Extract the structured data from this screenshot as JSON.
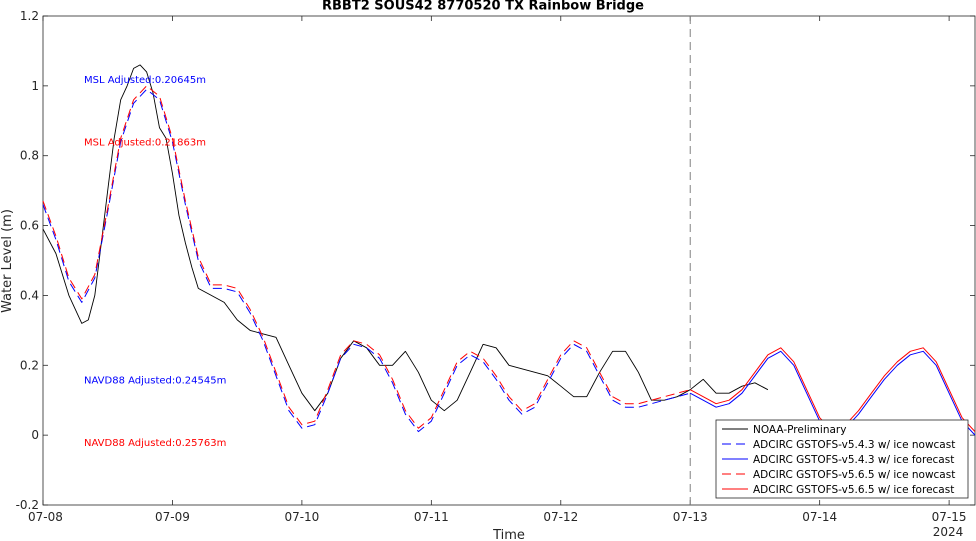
{
  "chart_data": {
    "type": "line",
    "title": "RBBT2 SOUS42 8770520 TX Rainbow Bridge",
    "xlabel": "Time",
    "ylabel": "Water Level (m)",
    "xlim": [
      0,
      7.2
    ],
    "ylim": [
      -0.2,
      1.2
    ],
    "x_ticks": [
      {
        "value": 0,
        "label": "07-08"
      },
      {
        "value": 1,
        "label": "07-09"
      },
      {
        "value": 2,
        "label": "07-10"
      },
      {
        "value": 3,
        "label": "07-11"
      },
      {
        "value": 4,
        "label": "07-12"
      },
      {
        "value": 5,
        "label": "07-13"
      },
      {
        "value": 6,
        "label": "07-14"
      },
      {
        "value": 7,
        "label": "07-15"
      }
    ],
    "x_unit_note": "2024",
    "y_ticks": [
      -0.2,
      0,
      0.2,
      0.4,
      0.6,
      0.8,
      1,
      1.2
    ],
    "y_tick_labels": [
      "-0.2",
      "0",
      "0.2",
      "0.4",
      "0.6",
      "0.8",
      "1",
      "1.2"
    ],
    "vline_x": 5,
    "annotations": [
      {
        "text": "MSL Adjusted:0.20645m",
        "color": "#0000ff",
        "y": 1.02
      },
      {
        "text": "MSL Adjusted:0.21863m",
        "color": "#ff0000",
        "y": 0.84
      },
      {
        "text": "NAVD88 Adjusted:0.24545m",
        "color": "#0000ff",
        "y": 0.16
      },
      {
        "text": "NAVD88 Adjusted:0.25763m",
        "color": "#ff0000",
        "y": -0.02
      }
    ],
    "legend_position": "bottom-right",
    "series": [
      {
        "name": "NOAA-Preliminary",
        "color": "#000000",
        "dash": "solid",
        "x": [
          0,
          0.1,
          0.2,
          0.3,
          0.35,
          0.4,
          0.45,
          0.5,
          0.55,
          0.6,
          0.65,
          0.7,
          0.75,
          0.8,
          0.85,
          0.9,
          0.95,
          1.0,
          1.05,
          1.1,
          1.15,
          1.2,
          1.3,
          1.4,
          1.5,
          1.6,
          1.7,
          1.8,
          1.9,
          2.0,
          2.1,
          2.2,
          2.3,
          2.4,
          2.5,
          2.6,
          2.7,
          2.8,
          2.9,
          3.0,
          3.1,
          3.2,
          3.3,
          3.4,
          3.5,
          3.6,
          3.7,
          3.8,
          3.9,
          4.0,
          4.1,
          4.2,
          4.3,
          4.4,
          4.5,
          4.6,
          4.7,
          4.8,
          4.9,
          5.0,
          5.1,
          5.2,
          5.3,
          5.4,
          5.5,
          5.6
        ],
        "y": [
          0.59,
          0.52,
          0.4,
          0.32,
          0.33,
          0.4,
          0.55,
          0.7,
          0.85,
          0.96,
          1.0,
          1.05,
          1.06,
          1.04,
          0.98,
          0.88,
          0.85,
          0.75,
          0.63,
          0.55,
          0.48,
          0.42,
          0.4,
          0.38,
          0.33,
          0.3,
          0.29,
          0.28,
          0.2,
          0.12,
          0.07,
          0.12,
          0.22,
          0.27,
          0.25,
          0.2,
          0.2,
          0.24,
          0.18,
          0.1,
          0.07,
          0.1,
          0.18,
          0.26,
          0.25,
          0.2,
          0.19,
          0.18,
          0.17,
          0.14,
          0.11,
          0.11,
          0.18,
          0.24,
          0.24,
          0.18,
          0.1,
          0.1,
          0.11,
          0.13,
          0.16,
          0.12,
          0.12,
          0.14,
          0.15,
          0.13
        ]
      },
      {
        "name": "ADCIRC GSTOFS-v5.4.3 w/ ice nowcast",
        "color": "#0000ff",
        "dash": "dashed",
        "x": [
          0,
          0.1,
          0.2,
          0.3,
          0.4,
          0.5,
          0.6,
          0.7,
          0.8,
          0.9,
          1.0,
          1.1,
          1.2,
          1.3,
          1.4,
          1.5,
          1.6,
          1.7,
          1.8,
          1.9,
          2.0,
          2.1,
          2.2,
          2.3,
          2.4,
          2.5,
          2.6,
          2.7,
          2.8,
          2.9,
          3.0,
          3.1,
          3.2,
          3.3,
          3.4,
          3.5,
          3.6,
          3.7,
          3.8,
          3.9,
          4.0,
          4.1,
          4.2,
          4.3,
          4.4,
          4.5,
          4.6,
          4.7,
          4.8,
          4.9,
          5.0
        ],
        "y": [
          0.66,
          0.56,
          0.44,
          0.38,
          0.45,
          0.64,
          0.84,
          0.95,
          0.99,
          0.96,
          0.84,
          0.66,
          0.5,
          0.42,
          0.42,
          0.41,
          0.35,
          0.27,
          0.17,
          0.07,
          0.02,
          0.03,
          0.12,
          0.22,
          0.26,
          0.25,
          0.22,
          0.15,
          0.06,
          0.01,
          0.04,
          0.12,
          0.2,
          0.23,
          0.21,
          0.16,
          0.1,
          0.06,
          0.08,
          0.15,
          0.22,
          0.26,
          0.24,
          0.17,
          0.1,
          0.08,
          0.08,
          0.09,
          0.1,
          0.11,
          0.12
        ]
      },
      {
        "name": "ADCIRC GSTOFS-v5.4.3 w/ ice forecast",
        "color": "#0000ff",
        "dash": "solid",
        "x": [
          5.0,
          5.1,
          5.2,
          5.3,
          5.4,
          5.5,
          5.6,
          5.7,
          5.8,
          5.9,
          6.0,
          6.1,
          6.2,
          6.3,
          6.4,
          6.5,
          6.6,
          6.7,
          6.8,
          6.9,
          7.0,
          7.1,
          7.2
        ],
        "y": [
          0.12,
          0.1,
          0.08,
          0.09,
          0.12,
          0.17,
          0.22,
          0.24,
          0.2,
          0.12,
          0.04,
          0.0,
          0.02,
          0.06,
          0.11,
          0.16,
          0.2,
          0.23,
          0.24,
          0.2,
          0.12,
          0.04,
          0.0
        ]
      },
      {
        "name": "ADCIRC GSTOFS-v5.6.5 w/ ice nowcast",
        "color": "#ff0000",
        "dash": "dashed",
        "x": [
          0,
          0.1,
          0.2,
          0.3,
          0.4,
          0.5,
          0.6,
          0.7,
          0.8,
          0.9,
          1.0,
          1.1,
          1.2,
          1.3,
          1.4,
          1.5,
          1.6,
          1.7,
          1.8,
          1.9,
          2.0,
          2.1,
          2.2,
          2.3,
          2.4,
          2.5,
          2.6,
          2.7,
          2.8,
          2.9,
          3.0,
          3.1,
          3.2,
          3.3,
          3.4,
          3.5,
          3.6,
          3.7,
          3.8,
          3.9,
          4.0,
          4.1,
          4.2,
          4.3,
          4.4,
          4.5,
          4.6,
          4.7,
          4.8,
          4.9,
          5.0
        ],
        "y": [
          0.67,
          0.57,
          0.45,
          0.39,
          0.46,
          0.65,
          0.85,
          0.96,
          1.0,
          0.97,
          0.85,
          0.67,
          0.51,
          0.43,
          0.43,
          0.42,
          0.36,
          0.28,
          0.18,
          0.08,
          0.03,
          0.04,
          0.13,
          0.23,
          0.27,
          0.26,
          0.23,
          0.16,
          0.07,
          0.02,
          0.05,
          0.13,
          0.21,
          0.24,
          0.22,
          0.17,
          0.11,
          0.07,
          0.09,
          0.16,
          0.23,
          0.27,
          0.25,
          0.18,
          0.11,
          0.09,
          0.09,
          0.1,
          0.11,
          0.12,
          0.13
        ]
      },
      {
        "name": "ADCIRC GSTOFS-v5.6.5 w/ ice forecast",
        "color": "#ff0000",
        "dash": "solid",
        "x": [
          5.0,
          5.1,
          5.2,
          5.3,
          5.4,
          5.5,
          5.6,
          5.7,
          5.8,
          5.9,
          6.0,
          6.1,
          6.2,
          6.3,
          6.4,
          6.5,
          6.6,
          6.7,
          6.8,
          6.9,
          7.0,
          7.1,
          7.2
        ],
        "y": [
          0.13,
          0.11,
          0.09,
          0.1,
          0.13,
          0.18,
          0.23,
          0.25,
          0.21,
          0.13,
          0.05,
          0.01,
          0.03,
          0.07,
          0.12,
          0.17,
          0.21,
          0.24,
          0.25,
          0.21,
          0.13,
          0.05,
          0.01
        ]
      }
    ]
  }
}
